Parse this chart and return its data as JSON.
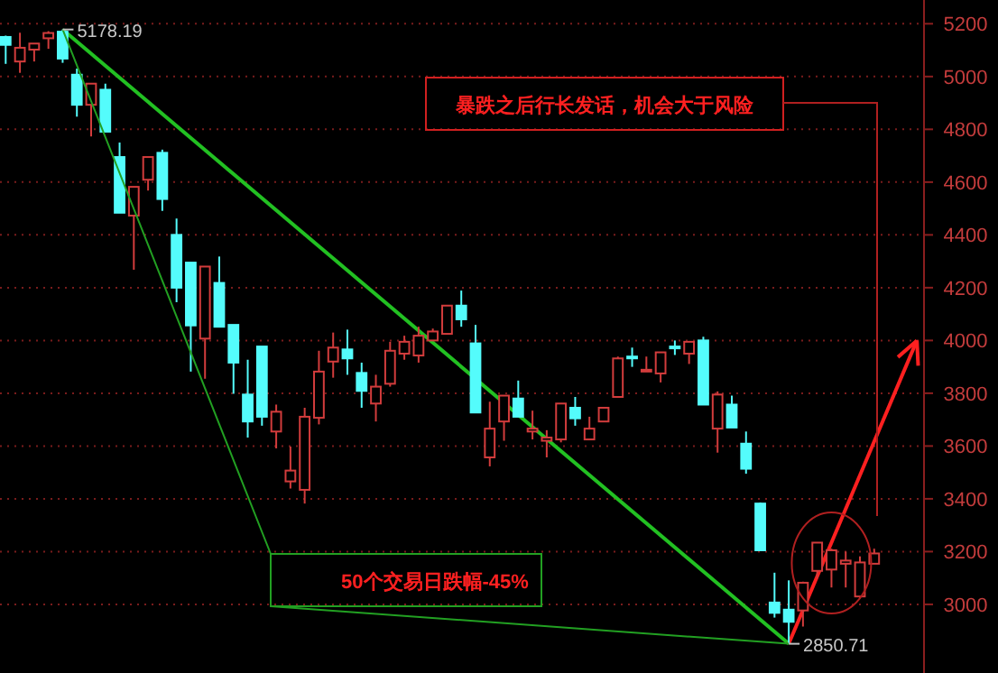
{
  "chart_data": {
    "type": "candlestick",
    "categories": [
      null,
      null,
      null,
      null,
      null,
      null,
      null,
      null,
      null,
      null,
      null,
      null,
      null,
      null,
      null,
      null,
      null,
      null,
      null,
      null,
      null,
      null,
      null,
      null,
      null,
      null,
      null,
      null,
      null,
      null,
      null,
      null,
      null,
      null,
      null,
      null,
      null,
      null,
      null,
      null,
      null,
      null,
      null,
      null,
      null,
      null,
      null,
      null,
      null,
      null,
      null,
      null,
      null,
      null,
      null,
      null,
      null,
      null,
      null,
      null,
      null,
      null,
      null,
      null,
      null
    ],
    "ohlc": [
      [
        5150,
        5155,
        5048,
        5120
      ],
      [
        5057,
        5166,
        5014,
        5109
      ],
      [
        5102,
        5125,
        5057,
        5125
      ],
      [
        5145,
        5172,
        5105,
        5165
      ],
      [
        5170,
        5178.19,
        5052,
        5068
      ],
      [
        5007,
        5030,
        4848,
        4893
      ],
      [
        4893,
        4973,
        4773,
        4973
      ],
      [
        4950,
        4973,
        4791,
        4791
      ],
      [
        4695,
        4750,
        4484,
        4484
      ],
      [
        4473,
        4582,
        4268,
        4582
      ],
      [
        4609,
        4695,
        4568,
        4695
      ],
      [
        4711,
        4723,
        4491,
        4536
      ],
      [
        4400,
        4462,
        4145,
        4200
      ],
      [
        4295,
        4295,
        3882,
        4057
      ],
      [
        4007,
        4280,
        3855,
        4280
      ],
      [
        4218,
        4318,
        4052,
        4052
      ],
      [
        4059,
        4059,
        3798,
        3916
      ],
      [
        3795,
        3927,
        3632,
        3693
      ],
      [
        3977,
        3977,
        3677,
        3711
      ],
      [
        3655,
        3757,
        3591,
        3730
      ],
      [
        3466,
        3598,
        3439,
        3507
      ],
      [
        3434,
        3745,
        3382,
        3711
      ],
      [
        3707,
        3961,
        3682,
        3882
      ],
      [
        3920,
        4030,
        3859,
        3973
      ],
      [
        3966,
        4041,
        3870,
        3932
      ],
      [
        3877,
        3916,
        3745,
        3809
      ],
      [
        3761,
        3870,
        3693,
        3825
      ],
      [
        3836,
        3995,
        3825,
        3961
      ],
      [
        3950,
        4018,
        3927,
        3995
      ],
      [
        3943,
        4052,
        3916,
        4018
      ],
      [
        4000,
        4045,
        4000,
        4034
      ],
      [
        4025,
        4132,
        4025,
        4132
      ],
      [
        4132,
        4189,
        4052,
        4080
      ],
      [
        3989,
        4059,
        3727,
        3727
      ],
      [
        3557,
        3768,
        3523,
        3666
      ],
      [
        3693,
        3791,
        3620,
        3791
      ],
      [
        3780,
        3848,
        3711,
        3711
      ],
      [
        3655,
        3734,
        3625,
        3666
      ],
      [
        3620,
        3660,
        3557,
        3632
      ],
      [
        3625,
        3761,
        3614,
        3761
      ],
      [
        3745,
        3786,
        3677,
        3705
      ],
      [
        3625,
        3711,
        3625,
        3666
      ],
      [
        3693,
        3745,
        3693,
        3745
      ],
      [
        3786,
        3939,
        3786,
        3932
      ],
      [
        3939,
        3973,
        3900,
        3935
      ],
      [
        3884,
        3939,
        3884,
        3889
      ],
      [
        3875,
        3955,
        3841,
        3955
      ],
      [
        3977,
        4000,
        3945,
        3973
      ],
      [
        3950,
        3995,
        3911,
        3995
      ],
      [
        4000,
        4014,
        3757,
        3757
      ],
      [
        3666,
        3807,
        3575,
        3795
      ],
      [
        3757,
        3791,
        3670,
        3670
      ],
      [
        3609,
        3655,
        3495,
        3514
      ],
      [
        3382,
        3386,
        3205,
        3205
      ],
      [
        3007,
        3120,
        2950,
        2968
      ],
      [
        2980,
        3091,
        2850.71,
        2934
      ],
      [
        2977,
        3086,
        2916,
        3082
      ],
      [
        3127,
        3234,
        3098,
        3234
      ],
      [
        3132,
        3211,
        3064,
        3205
      ],
      [
        3154,
        3200,
        3064,
        3166
      ],
      [
        3030,
        3182,
        3023,
        3159
      ],
      [
        3154,
        3211,
        3154,
        3193
      ],
      null,
      null,
      null
    ],
    "series": [
      {
        "type": "line",
        "color": "#22c022",
        "values": [
          null,
          null,
          null,
          null,
          5178,
          null,
          null,
          null,
          null,
          null,
          null,
          null,
          null,
          null,
          null,
          null,
          null,
          null,
          null,
          null,
          null,
          null,
          null,
          null,
          null,
          null,
          null,
          null,
          null,
          null,
          null,
          null,
          null,
          null,
          null,
          null,
          null,
          null,
          null,
          null,
          null,
          null,
          null,
          null,
          null,
          null,
          null,
          null,
          null,
          null,
          null,
          null,
          null,
          null,
          null,
          2851,
          null,
          null,
          null,
          null,
          null,
          null,
          null,
          null,
          null
        ]
      },
      {
        "type": "line",
        "color": "#ff2020",
        "values": [
          null,
          null,
          null,
          null,
          null,
          null,
          null,
          null,
          null,
          null,
          null,
          null,
          null,
          null,
          null,
          null,
          null,
          null,
          null,
          null,
          null,
          null,
          null,
          null,
          null,
          null,
          null,
          null,
          null,
          null,
          null,
          null,
          null,
          null,
          null,
          null,
          null,
          null,
          null,
          null,
          null,
          null,
          null,
          null,
          null,
          null,
          null,
          null,
          null,
          null,
          null,
          null,
          null,
          null,
          null,
          2851,
          null,
          null,
          null,
          null,
          null,
          null,
          null,
          null,
          4000
        ]
      }
    ],
    "ylim": [
      2740,
      5290
    ],
    "yticks": [
      3000,
      3200,
      3400,
      3600,
      3800,
      4000,
      4200,
      4400,
      4600,
      4800,
      5000,
      5200
    ],
    "grid": "y",
    "annotations": [
      "暴跌之后行长发话，机会大于风险",
      "50个交易日跌幅-45%",
      "5178.19",
      "2850.71"
    ]
  }
}
